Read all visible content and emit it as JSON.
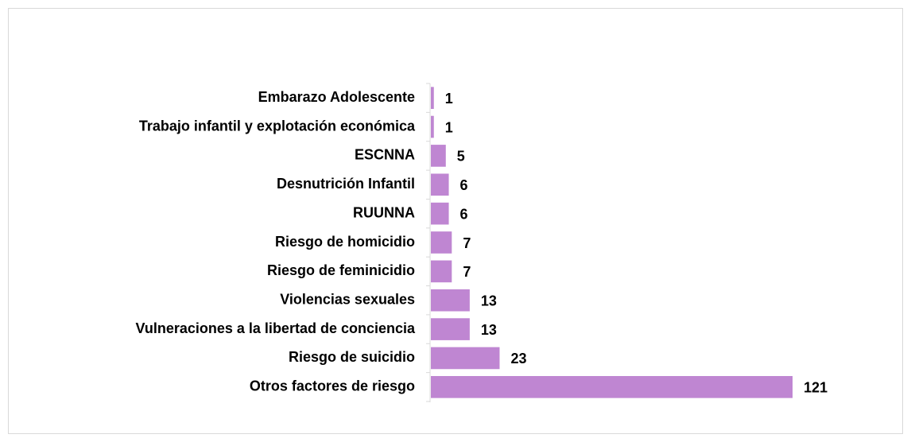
{
  "chart_data": {
    "type": "bar",
    "orientation": "horizontal",
    "categories": [
      "Embarazo Adolescente",
      "Trabajo infantil y explotación económica",
      "ESCNNA",
      "Desnutrición Infantil",
      "RUUNNA",
      "Riesgo de homicidio",
      "Riesgo de feminicidio",
      "Violencias sexuales",
      "Vulneraciones a la libertad de conciencia",
      "Riesgo de suicidio",
      "Otros factores de riesgo"
    ],
    "values": [
      1,
      1,
      5,
      6,
      6,
      7,
      7,
      13,
      13,
      23,
      121
    ],
    "color": "#bf86d2"
  }
}
